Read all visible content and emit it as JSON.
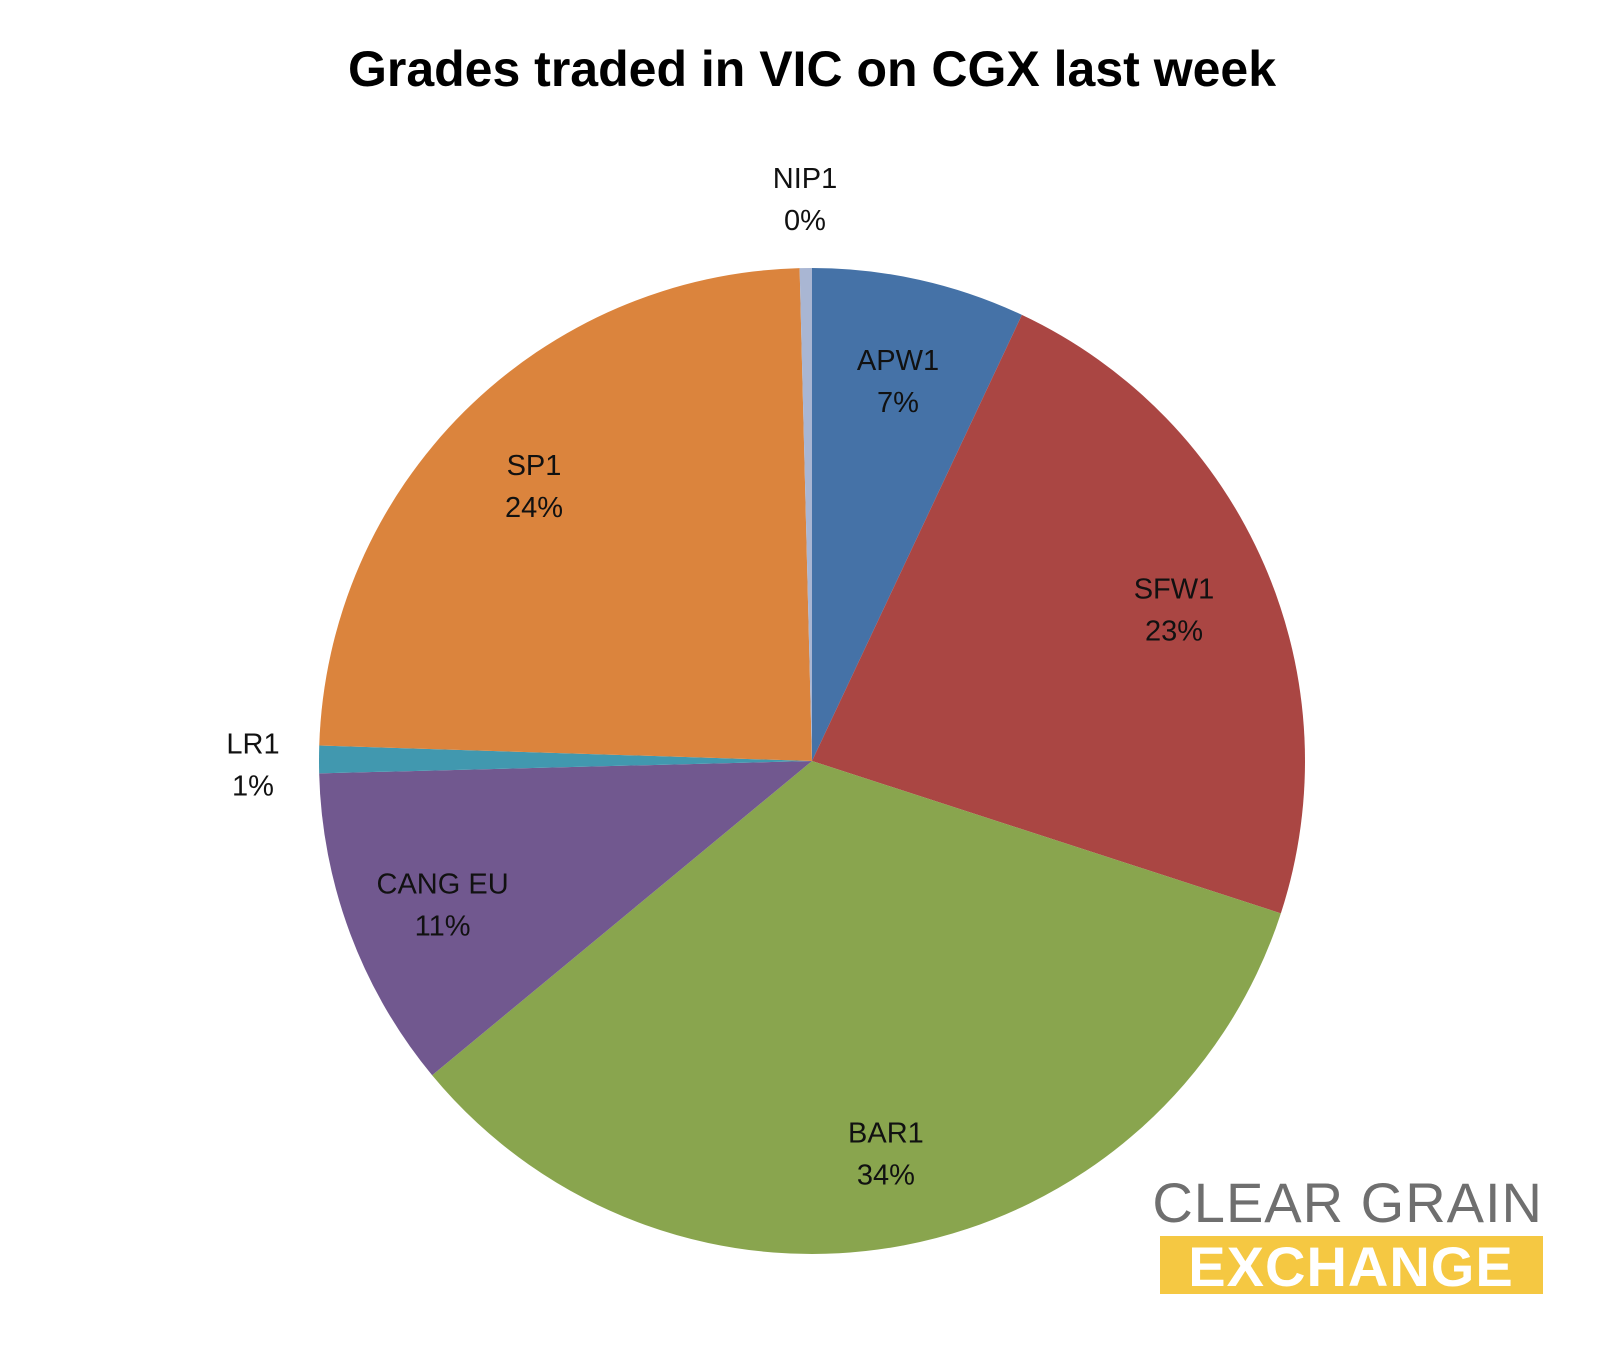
{
  "chart_data": {
    "type": "pie",
    "title": "Grades traded in VIC on CGX last week",
    "start_angle_deg": 0,
    "direction": "clockwise",
    "slices": [
      {
        "label": "APW1",
        "percent_label": "7%",
        "value": 7.0,
        "color": "#4572A7"
      },
      {
        "label": "SFW1",
        "percent_label": "23%",
        "value": 23.0,
        "color": "#AA4643"
      },
      {
        "label": "BAR1",
        "percent_label": "34%",
        "value": 34.0,
        "color": "#89A54E"
      },
      {
        "label": "CANG EU",
        "percent_label": "11%",
        "value": 10.6,
        "color": "#71588F"
      },
      {
        "label": "LR1",
        "percent_label": "1%",
        "value": 0.9,
        "color": "#4198AF"
      },
      {
        "label": "SP1",
        "percent_label": "24%",
        "value": 24.1,
        "color": "#DB843D"
      },
      {
        "label": "NIP1",
        "percent_label": "0%",
        "value": 0.4,
        "color": "#A9B6D3"
      }
    ]
  },
  "logo": {
    "line1": "CLEAR GRAIN",
    "line2": "EXCHANGE",
    "text_color": "#6F6F6F",
    "band_color": "#F5C842"
  }
}
